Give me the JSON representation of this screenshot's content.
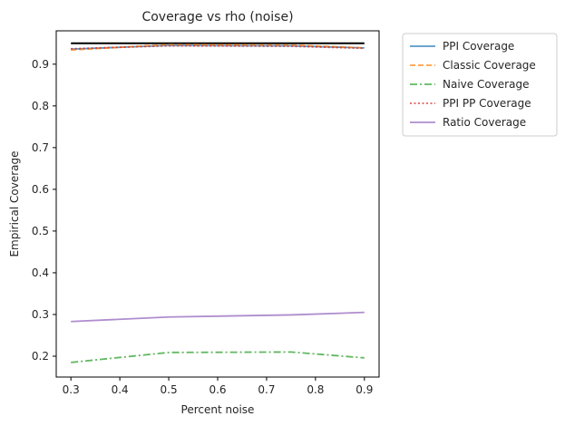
{
  "chart_data": {
    "type": "line",
    "title": "Coverage vs rho (noise)",
    "xlabel": "Percent noise",
    "ylabel": "Empirical Coverage",
    "xlim": [
      0.27,
      0.93
    ],
    "ylim": [
      0.15,
      0.98
    ],
    "xticks": [
      "0.3",
      "0.4",
      "0.5",
      "0.6",
      "0.7",
      "0.8",
      "0.9"
    ],
    "yticks": [
      "0.2",
      "0.3",
      "0.4",
      "0.5",
      "0.6",
      "0.7",
      "0.8",
      "0.9"
    ],
    "grid": false,
    "legend_position": "outside-top-right",
    "reference_line": {
      "y": 0.95,
      "x_range": [
        0.3,
        0.9
      ],
      "color": "#000000"
    },
    "x": [
      0.3,
      0.5,
      0.75,
      0.9
    ],
    "series": [
      {
        "name": "PPI Coverage",
        "color": "#1f77b4",
        "dash": "solid",
        "values": [
          0.936,
          0.945,
          0.944,
          0.939
        ]
      },
      {
        "name": "Classic Coverage",
        "color": "#ff7f0e",
        "dash": "dashed",
        "values": [
          0.934,
          0.947,
          0.946,
          0.939
        ]
      },
      {
        "name": "Naive Coverage",
        "color": "#2ca02c",
        "dash": "dashdot",
        "values": [
          0.185,
          0.209,
          0.21,
          0.196
        ]
      },
      {
        "name": "PPI PP Coverage",
        "color": "#d62728",
        "dash": "dotted",
        "values": [
          0.937,
          0.944,
          0.943,
          0.938
        ]
      },
      {
        "name": "Ratio Coverage",
        "color": "#9467bd",
        "dash": "solid",
        "values": [
          0.283,
          0.294,
          0.299,
          0.305
        ]
      }
    ]
  }
}
